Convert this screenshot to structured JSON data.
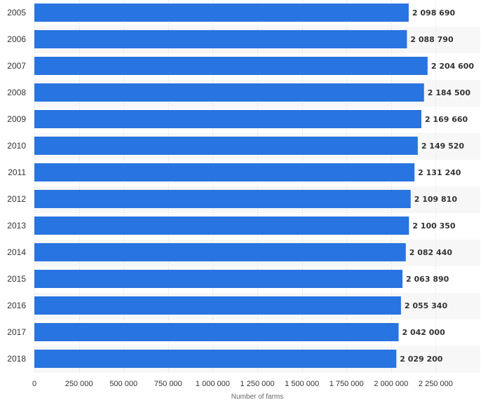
{
  "chart_data": {
    "type": "bar",
    "orientation": "horizontal",
    "categories": [
      "2005",
      "2006",
      "2007",
      "2008",
      "2009",
      "2010",
      "2011",
      "2012",
      "2013",
      "2014",
      "2015",
      "2016",
      "2017",
      "2018"
    ],
    "values": [
      2098690,
      2088790,
      2204600,
      2184500,
      2169660,
      2149520,
      2131240,
      2109810,
      2100350,
      2082440,
      2063890,
      2055340,
      2042000,
      2029200
    ],
    "value_labels": [
      "2 098 690",
      "2 088 790",
      "2 204 600",
      "2 184 500",
      "2 169 660",
      "2 149 520",
      "2 131 240",
      "2 109 810",
      "2 100 350",
      "2 082 440",
      "2 063 890",
      "2 055 340",
      "2 042 000",
      "2 029 200"
    ],
    "xlabel": "Number of farms",
    "ylabel": "",
    "xlim": [
      0,
      2500000
    ],
    "xticks": [
      0,
      250000,
      500000,
      750000,
      1000000,
      1250000,
      1500000,
      1750000,
      2000000,
      2250000
    ],
    "xtick_labels": [
      "0",
      "250 000",
      "500 000",
      "750 000",
      "1 000 000",
      "1 250 000",
      "1 500 000",
      "1 750 000",
      "2 000 000",
      "2 250 000"
    ],
    "grid": true,
    "legend": "none",
    "colors": {
      "bar": "#2874e0",
      "band": "#f7f7f7",
      "grid": "#d9d9d9",
      "text": "#333333",
      "axis_title": "#666666"
    }
  }
}
